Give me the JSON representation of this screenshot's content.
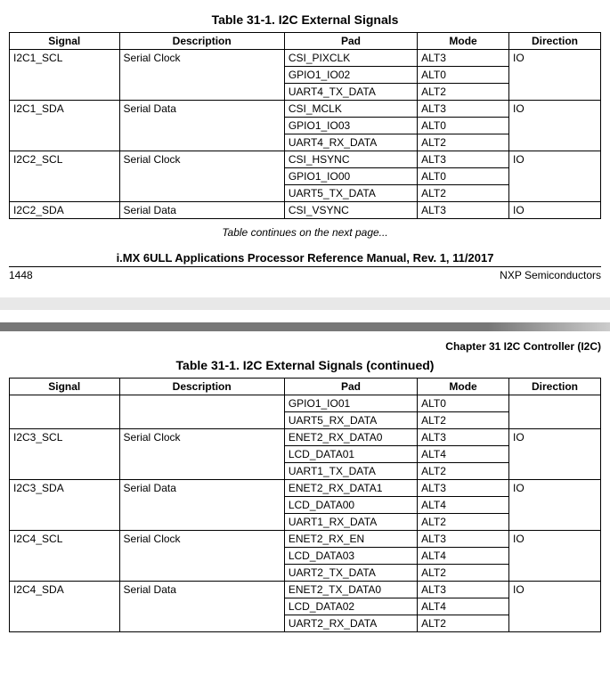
{
  "table1": {
    "title": "Table 31-1.   I2C External Signals",
    "columns": {
      "signal": "Signal",
      "description": "Description",
      "pad": "Pad",
      "mode": "Mode",
      "direction": "Direction"
    },
    "col_widths": {
      "signal": 120,
      "description": 180,
      "pad": 145,
      "mode": 100,
      "direction": 100
    },
    "rows": [
      {
        "signal": "I2C1_SCL",
        "description": "Serial Clock",
        "pad": "CSI_PIXCLK",
        "mode": "ALT3",
        "direction": "IO",
        "first": true
      },
      {
        "signal": "",
        "description": "",
        "pad": "GPIO1_IO02",
        "mode": "ALT0",
        "direction": ""
      },
      {
        "signal": "",
        "description": "",
        "pad": "UART4_TX_DATA",
        "mode": "ALT2",
        "direction": "",
        "last": true
      },
      {
        "signal": "I2C1_SDA",
        "description": "Serial Data",
        "pad": "CSI_MCLK",
        "mode": "ALT3",
        "direction": "IO",
        "first": true
      },
      {
        "signal": "",
        "description": "",
        "pad": "GPIO1_IO03",
        "mode": "ALT0",
        "direction": ""
      },
      {
        "signal": "",
        "description": "",
        "pad": "UART4_RX_DATA",
        "mode": "ALT2",
        "direction": "",
        "last": true
      },
      {
        "signal": "I2C2_SCL",
        "description": "Serial Clock",
        "pad": "CSI_HSYNC",
        "mode": "ALT3",
        "direction": "IO",
        "first": true
      },
      {
        "signal": "",
        "description": "",
        "pad": "GPIO1_IO00",
        "mode": "ALT0",
        "direction": ""
      },
      {
        "signal": "",
        "description": "",
        "pad": "UART5_TX_DATA",
        "mode": "ALT2",
        "direction": "",
        "last": true
      },
      {
        "signal": "I2C2_SDA",
        "description": "Serial Data",
        "pad": "CSI_VSYNC",
        "mode": "ALT3",
        "direction": "IO",
        "first": true,
        "last": true
      }
    ],
    "continues_note": "Table continues on the next page...",
    "manual_title": "i.MX 6ULL Applications Processor Reference Manual, Rev. 1, 11/2017",
    "page_number": "1448",
    "company": "NXP Semiconductors"
  },
  "chapter_label": "Chapter 31 I2C Controller (I2C)",
  "table2": {
    "title": "Table 31-1.   I2C External Signals (continued)",
    "rows": [
      {
        "signal": "",
        "description": "",
        "pad": "GPIO1_IO01",
        "mode": "ALT0",
        "direction": "",
        "first": true,
        "sig_open_top": true
      },
      {
        "signal": "",
        "description": "",
        "pad": "UART5_RX_DATA",
        "mode": "ALT2",
        "direction": "",
        "last": true
      },
      {
        "signal": "I2C3_SCL",
        "description": "Serial Clock",
        "pad": "ENET2_RX_DATA0",
        "mode": "ALT3",
        "direction": "IO",
        "first": true
      },
      {
        "signal": "",
        "description": "",
        "pad": "LCD_DATA01",
        "mode": "ALT4",
        "direction": ""
      },
      {
        "signal": "",
        "description": "",
        "pad": "UART1_TX_DATA",
        "mode": "ALT2",
        "direction": "",
        "last": true
      },
      {
        "signal": "I2C3_SDA",
        "description": "Serial Data",
        "pad": "ENET2_RX_DATA1",
        "mode": "ALT3",
        "direction": "IO",
        "first": true
      },
      {
        "signal": "",
        "description": "",
        "pad": "LCD_DATA00",
        "mode": "ALT4",
        "direction": ""
      },
      {
        "signal": "",
        "description": "",
        "pad": "UART1_RX_DATA",
        "mode": "ALT2",
        "direction": "",
        "last": true
      },
      {
        "signal": "I2C4_SCL",
        "description": "Serial Clock",
        "pad": "ENET2_RX_EN",
        "mode": "ALT3",
        "direction": "IO",
        "first": true
      },
      {
        "signal": "",
        "description": "",
        "pad": "LCD_DATA03",
        "mode": "ALT4",
        "direction": ""
      },
      {
        "signal": "",
        "description": "",
        "pad": "UART2_TX_DATA",
        "mode": "ALT2",
        "direction": "",
        "last": true
      },
      {
        "signal": "I2C4_SDA",
        "description": "Serial Data",
        "pad": "ENET2_TX_DATA0",
        "mode": "ALT3",
        "direction": "IO",
        "first": true
      },
      {
        "signal": "",
        "description": "",
        "pad": "LCD_DATA02",
        "mode": "ALT4",
        "direction": ""
      },
      {
        "signal": "",
        "description": "",
        "pad": "UART2_RX_DATA",
        "mode": "ALT2",
        "direction": "",
        "last": true
      }
    ]
  }
}
